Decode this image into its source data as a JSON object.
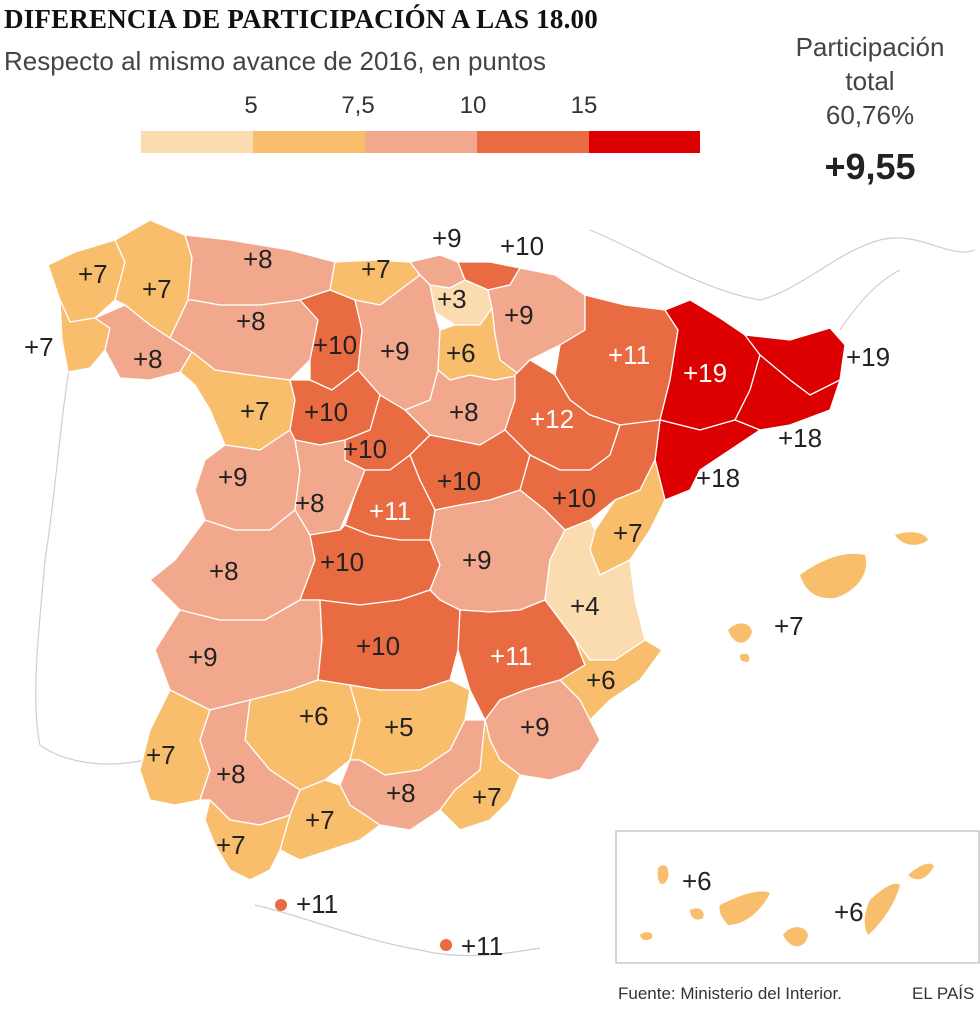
{
  "title": "DIFERENCIA DE PARTICIPACIÓN A LAS 18.00",
  "subtitle": "Respecto al mismo avance de 2016, en puntos",
  "legend": {
    "ticks": [
      "5",
      "7,5",
      "10",
      "15"
    ],
    "colors": [
      "#fbdcb0",
      "#f9be6c",
      "#f1a88c",
      "#e96b41",
      "#dd0000"
    ]
  },
  "total": {
    "label_line1": "Participación",
    "label_line2": "total",
    "value": "60,76%",
    "diff": "+9,55"
  },
  "regions": [
    {
      "name": "A Coruña",
      "label": "+7",
      "value": 7
    },
    {
      "name": "Lugo",
      "label": "+7",
      "value": 7
    },
    {
      "name": "Pontevedra",
      "label": "+7",
      "value": 7
    },
    {
      "name": "Ourense",
      "label": "+8",
      "value": 8
    },
    {
      "name": "Asturias",
      "label": "+8",
      "value": 8
    },
    {
      "name": "Cantabria",
      "label": "+7",
      "value": 7
    },
    {
      "name": "Bizkaia",
      "label": "+9",
      "value": 9
    },
    {
      "name": "Gipuzkoa",
      "label": "+10",
      "value": 10
    },
    {
      "name": "Álava",
      "label": "+3",
      "value": 3
    },
    {
      "name": "Navarra",
      "label": "+9",
      "value": 9
    },
    {
      "name": "León",
      "label": "+8",
      "value": 8
    },
    {
      "name": "Palencia",
      "label": "+10",
      "value": 10
    },
    {
      "name": "Burgos",
      "label": "+9",
      "value": 9
    },
    {
      "name": "La Rioja",
      "label": "+6",
      "value": 6
    },
    {
      "name": "Huesca",
      "label": "+11",
      "value": 11
    },
    {
      "name": "Lleida",
      "label": "+19",
      "value": 19
    },
    {
      "name": "Girona",
      "label": "+19",
      "value": 19
    },
    {
      "name": "Barcelona",
      "label": "+18",
      "value": 18
    },
    {
      "name": "Tarragona",
      "label": "+18",
      "value": 18
    },
    {
      "name": "Zamora",
      "label": "+7",
      "value": 7
    },
    {
      "name": "Valladolid",
      "label": "+10",
      "value": 10
    },
    {
      "name": "Soria",
      "label": "+8",
      "value": 8
    },
    {
      "name": "Zaragoza",
      "label": "+12",
      "value": 12
    },
    {
      "name": "Salamanca",
      "label": "+9",
      "value": 9
    },
    {
      "name": "Segovia",
      "label": "+10",
      "value": 10
    },
    {
      "name": "Ávila",
      "label": "+8",
      "value": 8
    },
    {
      "name": "Madrid",
      "label": "+11",
      "value": 11
    },
    {
      "name": "Guadalajara",
      "label": "+10",
      "value": 10
    },
    {
      "name": "Teruel",
      "label": "+10",
      "value": 10
    },
    {
      "name": "Castellón",
      "label": "+7",
      "value": 7
    },
    {
      "name": "Cáceres",
      "label": "+8",
      "value": 8
    },
    {
      "name": "Toledo",
      "label": "+10",
      "value": 10
    },
    {
      "name": "Cuenca",
      "label": "+9",
      "value": 9
    },
    {
      "name": "Valencia",
      "label": "+4",
      "value": 4
    },
    {
      "name": "Badajoz",
      "label": "+9",
      "value": 9
    },
    {
      "name": "Ciudad Real",
      "label": "+10",
      "value": 10
    },
    {
      "name": "Albacete",
      "label": "+11",
      "value": 11
    },
    {
      "name": "Alicante",
      "label": "+6",
      "value": 6
    },
    {
      "name": "Córdoba",
      "label": "+6",
      "value": 6
    },
    {
      "name": "Jaén",
      "label": "+5",
      "value": 5
    },
    {
      "name": "Murcia",
      "label": "+9",
      "value": 9
    },
    {
      "name": "Huelva",
      "label": "+7",
      "value": 7
    },
    {
      "name": "Sevilla",
      "label": "+8",
      "value": 8
    },
    {
      "name": "Granada",
      "label": "+8",
      "value": 8
    },
    {
      "name": "Almería",
      "label": "+7",
      "value": 7
    },
    {
      "name": "Málaga",
      "label": "+7",
      "value": 7
    },
    {
      "name": "Cádiz",
      "label": "+7",
      "value": 7
    },
    {
      "name": "Ceuta",
      "label": "+11",
      "value": 11
    },
    {
      "name": "Melilla",
      "label": "+11",
      "value": 11
    },
    {
      "name": "Baleares",
      "label": "+7",
      "value": 7
    },
    {
      "name": "Santa Cruz de Tenerife",
      "label": "+6",
      "value": 6
    },
    {
      "name": "Las Palmas",
      "label": "+6",
      "value": 6
    }
  ],
  "footer": {
    "source": "Fuente: Ministerio del Interior.",
    "brand": "EL PAÍS"
  }
}
